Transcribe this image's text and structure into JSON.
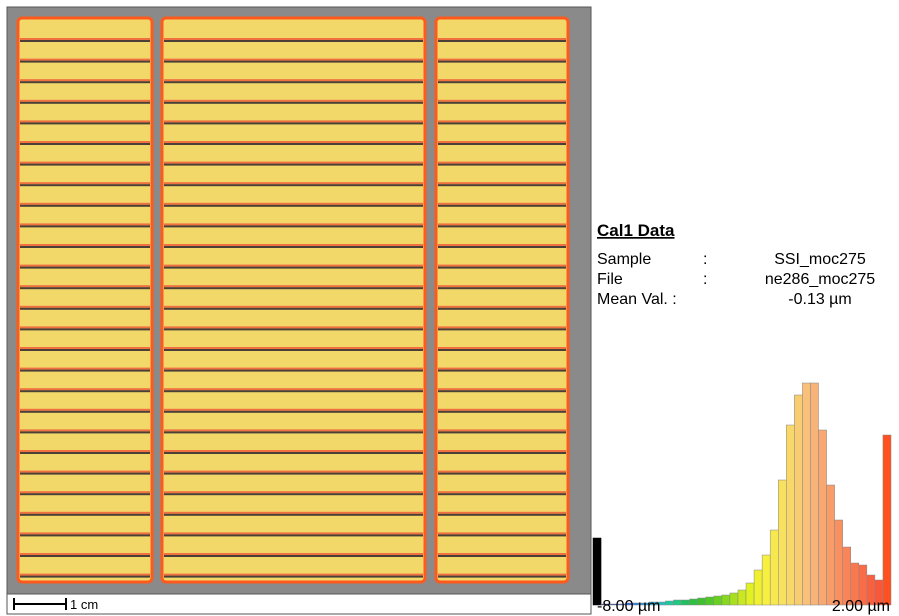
{
  "map": {
    "scale_label": "1 cm"
  },
  "info": {
    "title": "Cal1 Data",
    "rows": [
      {
        "label": "Sample",
        "sep": ":",
        "value": "SSI_moc275"
      },
      {
        "label": "File",
        "sep": ":",
        "value": "ne286_moc275"
      },
      {
        "label": "Mean Val. :",
        "value": "-0.13  µm"
      }
    ]
  },
  "chart_data": {
    "type": "bar",
    "values": [
      67,
      1,
      1,
      1,
      2,
      2,
      2,
      3,
      3,
      4,
      5,
      5,
      6,
      7,
      8,
      9,
      10,
      12,
      15,
      22,
      35,
      50,
      75,
      125,
      180,
      210,
      222,
      222,
      175,
      120,
      85,
      58,
      42,
      40,
      30,
      25,
      170
    ],
    "colors": [
      "#000000",
      "#1a1aa0",
      "#1e3cc0",
      "#2050d0",
      "#2068e0",
      "#2080e0",
      "#2098e0",
      "#20b0d8",
      "#20c0c0",
      "#20c8a0",
      "#20c880",
      "#20c060",
      "#30c040",
      "#40c030",
      "#50c828",
      "#68d020",
      "#88d820",
      "#a8e020",
      "#c8e820",
      "#e0f020",
      "#f0f030",
      "#f8f040",
      "#f8e850",
      "#f8e060",
      "#f8d868",
      "#f8cc70",
      "#f8c078",
      "#f8b478",
      "#f8a870",
      "#f89c68",
      "#f89060",
      "#f88458",
      "#f87850",
      "#f86c48",
      "#f86040",
      "#f85838",
      "#ff5020"
    ],
    "xticks": [
      {
        "value": -8,
        "label": "-8.00 µm"
      },
      {
        "value": 2,
        "label": "2.00 µm"
      }
    ]
  }
}
